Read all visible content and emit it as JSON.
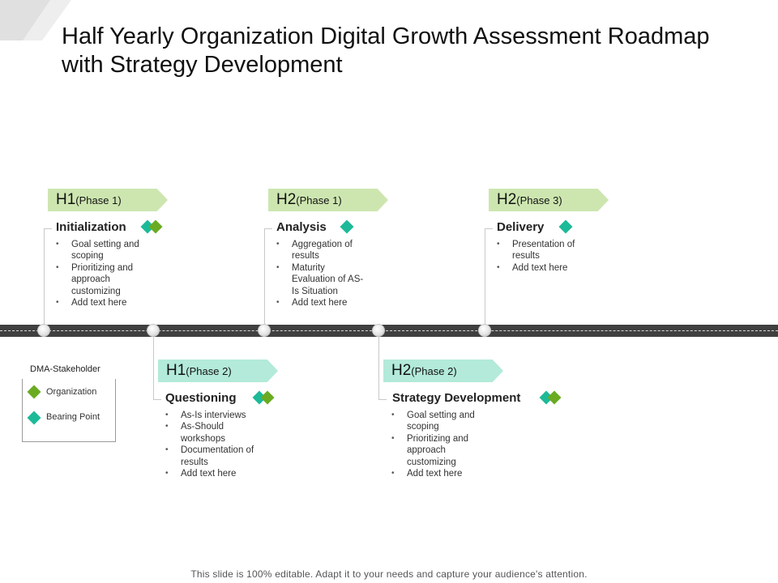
{
  "title": "Half Yearly Organization Digital Growth  Assessment Roadmap with Strategy Development",
  "colors": {
    "organization": "#6aab22",
    "bearing_point": "#1cba98",
    "tag_top": "#cde6b0",
    "tag_bottom": "#b3ead9",
    "road": "#404040"
  },
  "milestones": [
    {
      "half": "H1",
      "phase": "(Phase 1)",
      "title": "Initialization",
      "markers": [
        "Bearing Point",
        "Organization"
      ],
      "bullets": [
        "Goal setting and scoping",
        "Prioritizing and approach customizing",
        "Add text here"
      ]
    },
    {
      "half": "H2",
      "phase": "(Phase 1)",
      "title": "Analysis",
      "markers": [
        "Bearing Point"
      ],
      "bullets": [
        "Aggregation of results",
        "Maturity Evaluation of AS-Is Situation",
        "Add text here"
      ]
    },
    {
      "half": "H2",
      "phase": "(Phase 3)",
      "title": "Delivery",
      "markers": [
        "Bearing Point"
      ],
      "bullets": [
        "Presentation of results",
        "Add text here"
      ]
    },
    {
      "half": "H1",
      "phase": "(Phase 2)",
      "title": "Questioning",
      "markers": [
        "Bearing Point",
        "Organization"
      ],
      "bullets": [
        "As-Is interviews",
        "As-Should workshops",
        "Documentation of results",
        "Add text here"
      ]
    },
    {
      "half": "H2",
      "phase": "(Phase 2)",
      "title": "Strategy Development",
      "markers": [
        "Bearing Point",
        "Organization"
      ],
      "bullets": [
        "Goal setting and scoping",
        "Prioritizing and approach customizing",
        "Add text here"
      ]
    }
  ],
  "legend": {
    "title": "DMA-Stakeholder",
    "items": [
      {
        "label": "Organization",
        "icon": "green-diamond-icon"
      },
      {
        "label": "Bearing Point",
        "icon": "teal-diamond-icon"
      }
    ]
  },
  "footer": "This slide is 100% editable. Adapt it to your needs and capture your audience's attention."
}
